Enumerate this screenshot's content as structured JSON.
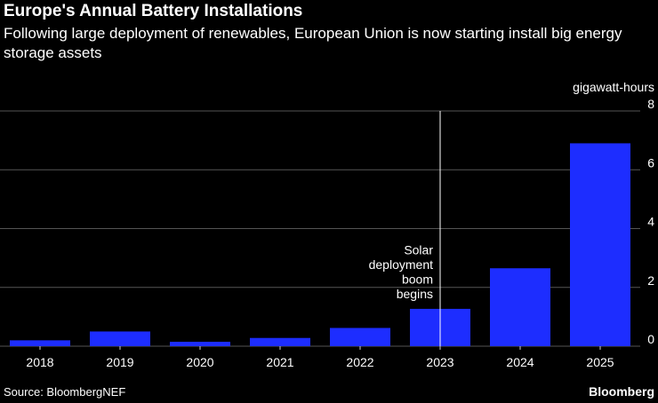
{
  "title": "Europe's Annual Battery Installations",
  "subtitle": "Following large deployment of renewables, European Union is now starting install big energy storage assets",
  "source": "Source: BloombergNEF",
  "brand": "Bloomberg",
  "colors": {
    "bar": "#1d2dff",
    "background": "#000000",
    "grid": "#555555",
    "annotation_line": "#ffffff"
  },
  "chart_data": {
    "type": "bar",
    "title": "Europe's Annual Battery Installations",
    "xlabel": "",
    "ylabel": "gigawatt-hours",
    "categories": [
      "2018",
      "2019",
      "2020",
      "2021",
      "2022",
      "2023",
      "2024",
      "2025"
    ],
    "values": [
      0.2,
      0.5,
      0.15,
      0.28,
      0.62,
      1.27,
      2.65,
      6.9
    ],
    "ylim": [
      0,
      8
    ],
    "yticks": [
      0,
      2,
      4,
      6,
      8
    ],
    "y_unit_label": "gigawatt-hours",
    "grid": true,
    "annotation": {
      "category": "2023",
      "lines": [
        "Solar",
        "deployment",
        "boom",
        "begins"
      ]
    }
  }
}
